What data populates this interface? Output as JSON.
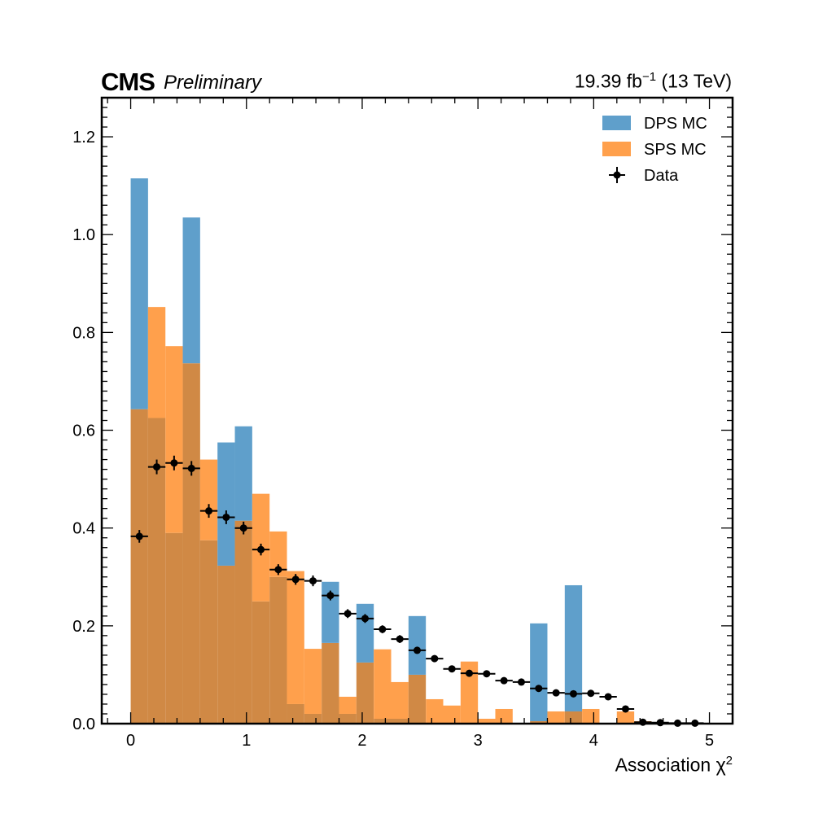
{
  "header": {
    "experiment": "CMS",
    "status": "Preliminary",
    "lumi_value": "19.39 fb",
    "lumi_exp": "−1",
    "energy": "(13 TeV)"
  },
  "chart_data": {
    "type": "bar",
    "xlabel_main": "Association χ",
    "xlabel_sup": "2",
    "ylabel": "",
    "xlim": [
      -0.25,
      5.2
    ],
    "ylim": [
      0,
      1.28
    ],
    "xticks": [
      0,
      1,
      2,
      3,
      4,
      5
    ],
    "yticks": [
      0.0,
      0.2,
      0.4,
      0.6,
      0.8,
      1.0,
      1.2
    ],
    "xtick_labels": [
      "0",
      "1",
      "2",
      "3",
      "4",
      "5"
    ],
    "ytick_labels": [
      "0.0",
      "0.2",
      "0.4",
      "0.6",
      "0.8",
      "1.0",
      "1.2"
    ],
    "legend_position": "top-right",
    "bin_edges": [
      0.0,
      0.15,
      0.3,
      0.45,
      0.6,
      0.75,
      0.9,
      1.05,
      1.2,
      1.35,
      1.5,
      1.65,
      1.8,
      1.95,
      2.1,
      2.25,
      2.4,
      2.55,
      2.7,
      2.85,
      3.0,
      3.15,
      3.3,
      3.45,
      3.6,
      3.75,
      3.9,
      4.05,
      4.2,
      4.35,
      4.5,
      4.65,
      4.8,
      4.95
    ],
    "series": [
      {
        "name": "DPS MC",
        "color": "#5f9fcb",
        "values": [
          1.115,
          0.625,
          0.39,
          1.035,
          0.375,
          0.575,
          0.608,
          0.25,
          0.3,
          0.04,
          0.02,
          0.29,
          0.02,
          0.245,
          0.01,
          0.01,
          0.22,
          0.0,
          0.0,
          0.0,
          0.0,
          0.0,
          0.0,
          0.205,
          0.0,
          0.283,
          0.0,
          0.0,
          0.0,
          0.0,
          0.0,
          0.0,
          0.0
        ]
      },
      {
        "name": "SPS MC",
        "color": "#ffa04c",
        "values": [
          0.643,
          0.852,
          0.772,
          0.737,
          0.54,
          0.323,
          0.415,
          0.47,
          0.393,
          0.312,
          0.153,
          0.165,
          0.055,
          0.125,
          0.152,
          0.085,
          0.1,
          0.05,
          0.037,
          0.127,
          0.01,
          0.03,
          0.0,
          0.005,
          0.025,
          0.025,
          0.03,
          0.0,
          0.025,
          0.005,
          0.0,
          0.0,
          0.0
        ]
      }
    ],
    "overlap_color": "#d08945",
    "data": {
      "name": "Data",
      "color": "#000000",
      "x": [
        0.075,
        0.225,
        0.375,
        0.525,
        0.675,
        0.825,
        0.975,
        1.125,
        1.275,
        1.425,
        1.575,
        1.725,
        1.875,
        2.025,
        2.175,
        2.325,
        2.475,
        2.625,
        2.775,
        2.925,
        3.075,
        3.225,
        3.375,
        3.525,
        3.675,
        3.825,
        3.975,
        4.125,
        4.275,
        4.425,
        4.575,
        4.725,
        4.875
      ],
      "y": [
        0.383,
        0.525,
        0.533,
        0.522,
        0.435,
        0.422,
        0.4,
        0.356,
        0.315,
        0.295,
        0.292,
        0.262,
        0.225,
        0.215,
        0.193,
        0.173,
        0.15,
        0.133,
        0.112,
        0.103,
        0.102,
        0.088,
        0.085,
        0.072,
        0.063,
        0.061,
        0.062,
        0.055,
        0.03,
        0.003,
        0.002,
        0.001,
        0.001
      ],
      "yerr": [
        0.013,
        0.015,
        0.015,
        0.015,
        0.014,
        0.014,
        0.013,
        0.012,
        0.011,
        0.011,
        0.011,
        0.01,
        0.009,
        0.009,
        0.008,
        0.008,
        0.007,
        0.007,
        0.006,
        0.006,
        0.006,
        0.005,
        0.005,
        0.005,
        0.004,
        0.004,
        0.004,
        0.004,
        0.003,
        0.001,
        0.001,
        0.001,
        0.001
      ]
    }
  }
}
